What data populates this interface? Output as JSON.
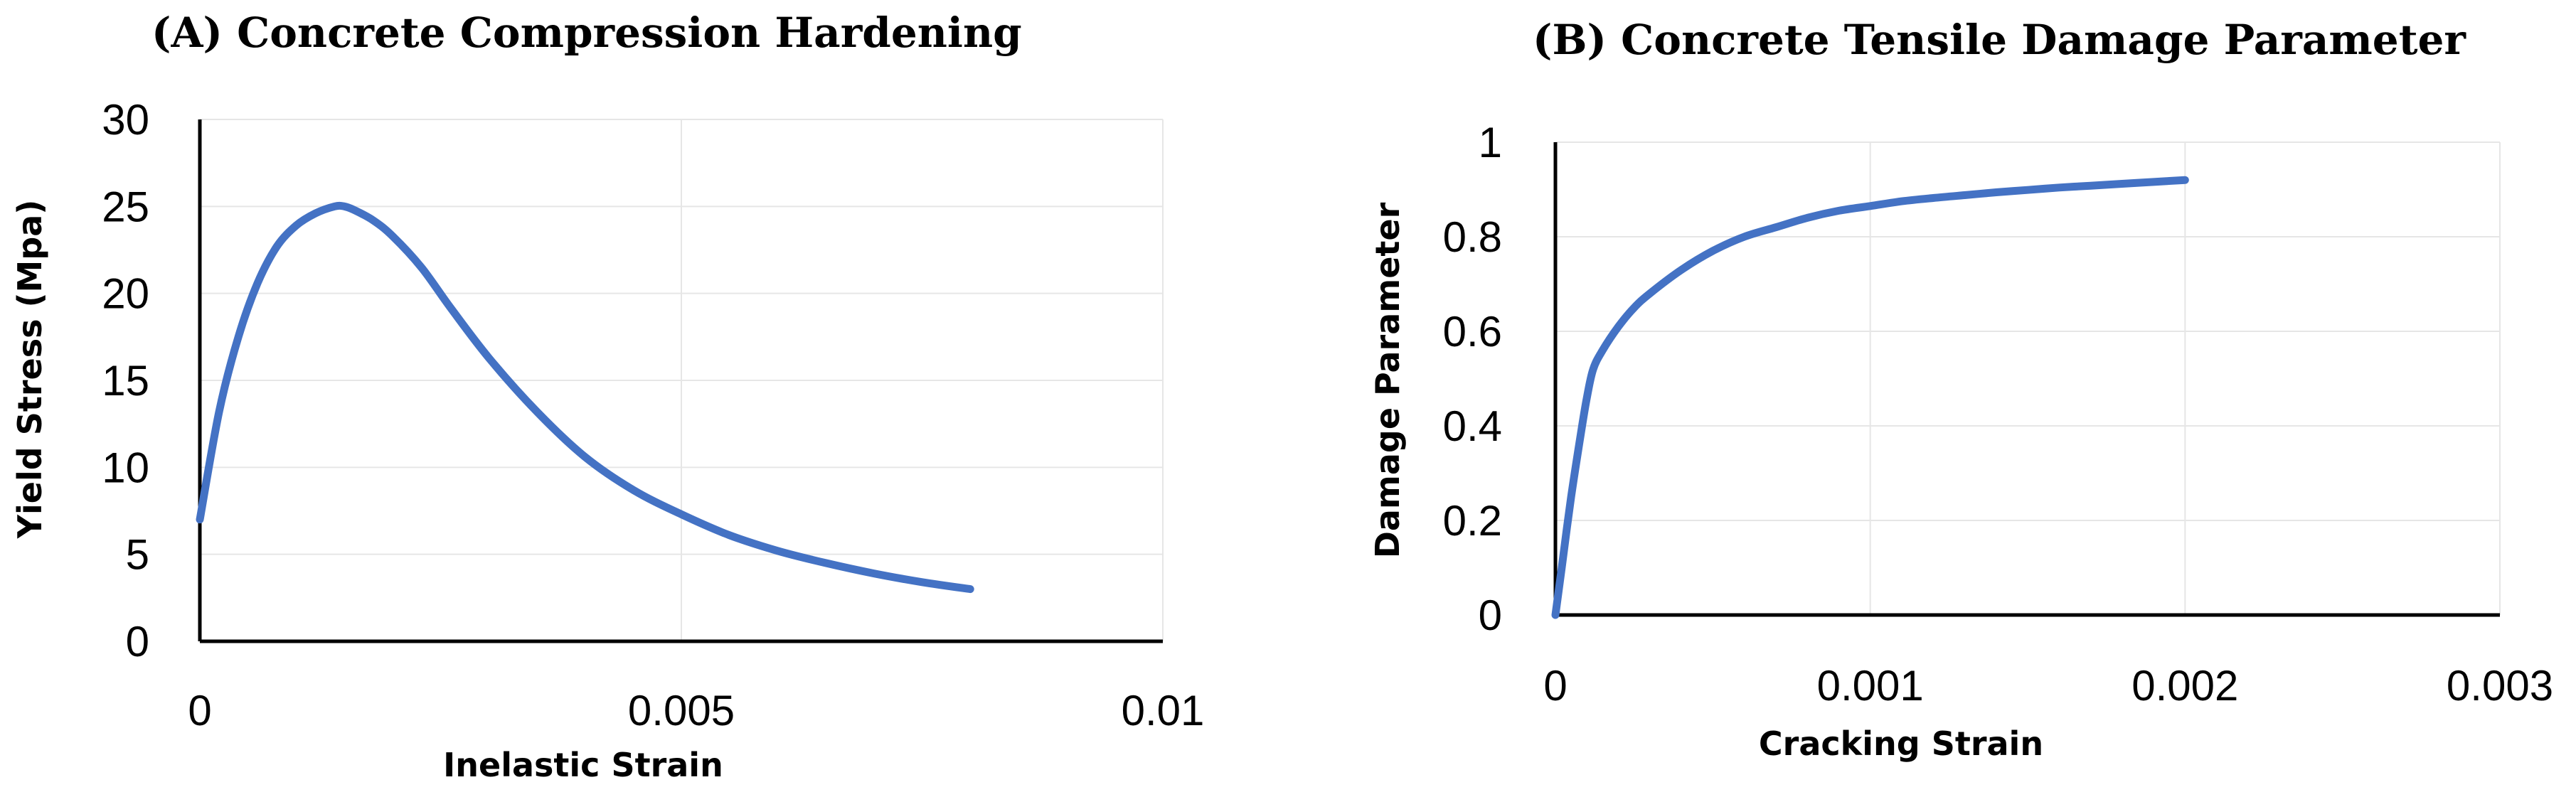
{
  "colors": {
    "series": "#4472C4",
    "axis": "#000000",
    "grid": "#E6E6E6"
  },
  "chart_data": [
    {
      "type": "line",
      "panel_title": "(A) Concrete Compression Hardening",
      "xlabel": "Inelastic Strain",
      "ylabel": "Yield Stress (Mpa)",
      "xlim": [
        0,
        0.01
      ],
      "ylim": [
        0,
        30
      ],
      "x_ticks": [
        0,
        0.005,
        0.01
      ],
      "x_tick_labels": [
        "0",
        "0.005",
        "0.01"
      ],
      "y_ticks": [
        0,
        5,
        10,
        15,
        20,
        25,
        30
      ],
      "y_tick_labels": [
        "0",
        "5",
        "10",
        "15",
        "20",
        "25",
        "30"
      ],
      "x_grid": [
        0.005,
        0.01
      ],
      "y_grid": [
        5,
        10,
        15,
        20,
        25,
        30
      ],
      "series": [
        {
          "name": "Yield Stress",
          "x": [
            0,
            0.0002,
            0.0004,
            0.0006,
            0.0008,
            0.001,
            0.0012,
            0.0014,
            0.0015,
            0.0016,
            0.0018,
            0.002,
            0.0023,
            0.0026,
            0.003,
            0.0035,
            0.004,
            0.0045,
            0.005,
            0.0055,
            0.006,
            0.0065,
            0.007,
            0.0075,
            0.008
          ],
          "y": [
            7.0,
            13.2,
            17.5,
            20.6,
            22.7,
            23.9,
            24.6,
            25.0,
            25.0,
            24.8,
            24.2,
            23.3,
            21.5,
            19.2,
            16.3,
            13.2,
            10.6,
            8.7,
            7.3,
            6.1,
            5.2,
            4.5,
            3.9,
            3.4,
            3.0
          ]
        }
      ]
    },
    {
      "type": "line",
      "panel_title": "(B) Concrete Tensile Damage Parameter",
      "xlabel": "Cracking Strain",
      "ylabel": "Damage Parameter",
      "xlim": [
        0,
        0.003
      ],
      "ylim": [
        0,
        1
      ],
      "x_ticks": [
        0,
        0.001,
        0.002,
        0.003
      ],
      "x_tick_labels": [
        "0",
        "0.001",
        "0.002",
        "0.003"
      ],
      "y_ticks": [
        0,
        0.2,
        0.4,
        0.6,
        0.8,
        1
      ],
      "y_tick_labels": [
        "0",
        "0.2",
        "0.4",
        "0.6",
        "0.8",
        "1"
      ],
      "x_grid": [
        0.001,
        0.002,
        0.003
      ],
      "y_grid": [
        0.2,
        0.4,
        0.6,
        0.8,
        1
      ],
      "series": [
        {
          "name": "Damage Parameter",
          "x": [
            0,
            2e-05,
            5e-05,
            8e-05,
            0.0001,
            0.00012,
            0.00015,
            0.0002,
            0.00025,
            0.0003,
            0.0004,
            0.0005,
            0.0006,
            0.0007,
            0.0008,
            0.0009,
            0.001,
            0.0011,
            0.0012,
            0.0013,
            0.0014,
            0.0015,
            0.0016,
            0.0017,
            0.0018,
            0.0019,
            0.002
          ],
          "y": [
            0,
            0.1,
            0.25,
            0.38,
            0.46,
            0.52,
            0.56,
            0.61,
            0.65,
            0.68,
            0.73,
            0.77,
            0.8,
            0.82,
            0.84,
            0.855,
            0.865,
            0.875,
            0.882,
            0.888,
            0.894,
            0.899,
            0.904,
            0.908,
            0.912,
            0.916,
            0.92
          ]
        }
      ]
    }
  ]
}
